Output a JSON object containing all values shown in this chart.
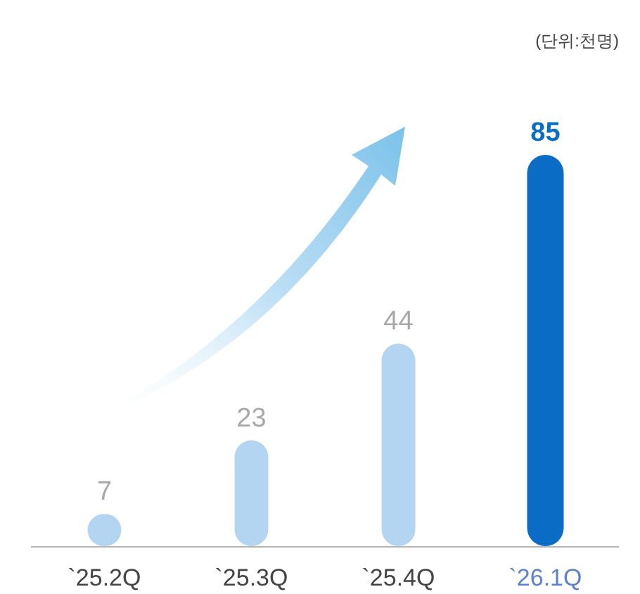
{
  "chart_data": {
    "type": "bar",
    "categories": [
      "`25.2Q",
      "`25.3Q",
      "`25.4Q",
      "`26.1Q"
    ],
    "values": [
      7,
      23,
      44,
      85
    ],
    "colors": [
      "#b3d5f1",
      "#b3d5f1",
      "#b3d5f1",
      "#0a6cc4"
    ],
    "data_labels": true,
    "annotations": [
      "(단위:천명)"
    ]
  }
}
